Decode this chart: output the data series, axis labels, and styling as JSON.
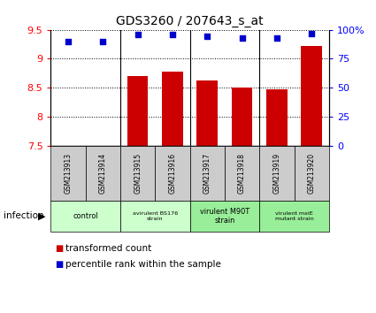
{
  "title": "GDS3260 / 207643_s_at",
  "samples": [
    "GSM213913",
    "GSM213914",
    "GSM213915",
    "GSM213916",
    "GSM213917",
    "GSM213918",
    "GSM213919",
    "GSM213920"
  ],
  "bar_values": [
    7.47,
    7.46,
    8.7,
    8.78,
    8.63,
    8.5,
    8.47,
    9.22
  ],
  "dot_values": [
    90,
    90,
    96,
    96,
    94,
    93,
    93,
    97
  ],
  "ylim_left": [
    7.5,
    9.5
  ],
  "ylim_right": [
    0,
    100
  ],
  "yticks_left": [
    7.5,
    8.0,
    8.5,
    9.0,
    9.5
  ],
  "yticks_right": [
    0,
    25,
    50,
    75,
    100
  ],
  "bar_color": "#cc0000",
  "dot_color": "#0000cc",
  "bar_width": 0.6,
  "groups": [
    {
      "label": "control",
      "samples": [
        0,
        1
      ],
      "color": "#ccffcc",
      "fontsize": 9
    },
    {
      "label": "avirulent BS176\nstrain",
      "samples": [
        2,
        3
      ],
      "color": "#ccffcc",
      "fontsize": 7
    },
    {
      "label": "virulent M90T\nstrain",
      "samples": [
        4,
        5
      ],
      "color": "#99ee99",
      "fontsize": 9
    },
    {
      "label": "virulent mxiE\nmutant strain",
      "samples": [
        6,
        7
      ],
      "color": "#99ee99",
      "fontsize": 7
    }
  ],
  "infection_label": "infection",
  "legend_items": [
    {
      "label": "transformed count",
      "color": "#cc0000"
    },
    {
      "label": "percentile rank within the sample",
      "color": "#0000cc"
    }
  ],
  "sample_bg_color": "#cccccc",
  "grid_linestyle": "dotted",
  "background_color": "#ffffff",
  "title_fontsize": 10,
  "ytick_fontsize": 8,
  "legend_fontsize": 7.5
}
